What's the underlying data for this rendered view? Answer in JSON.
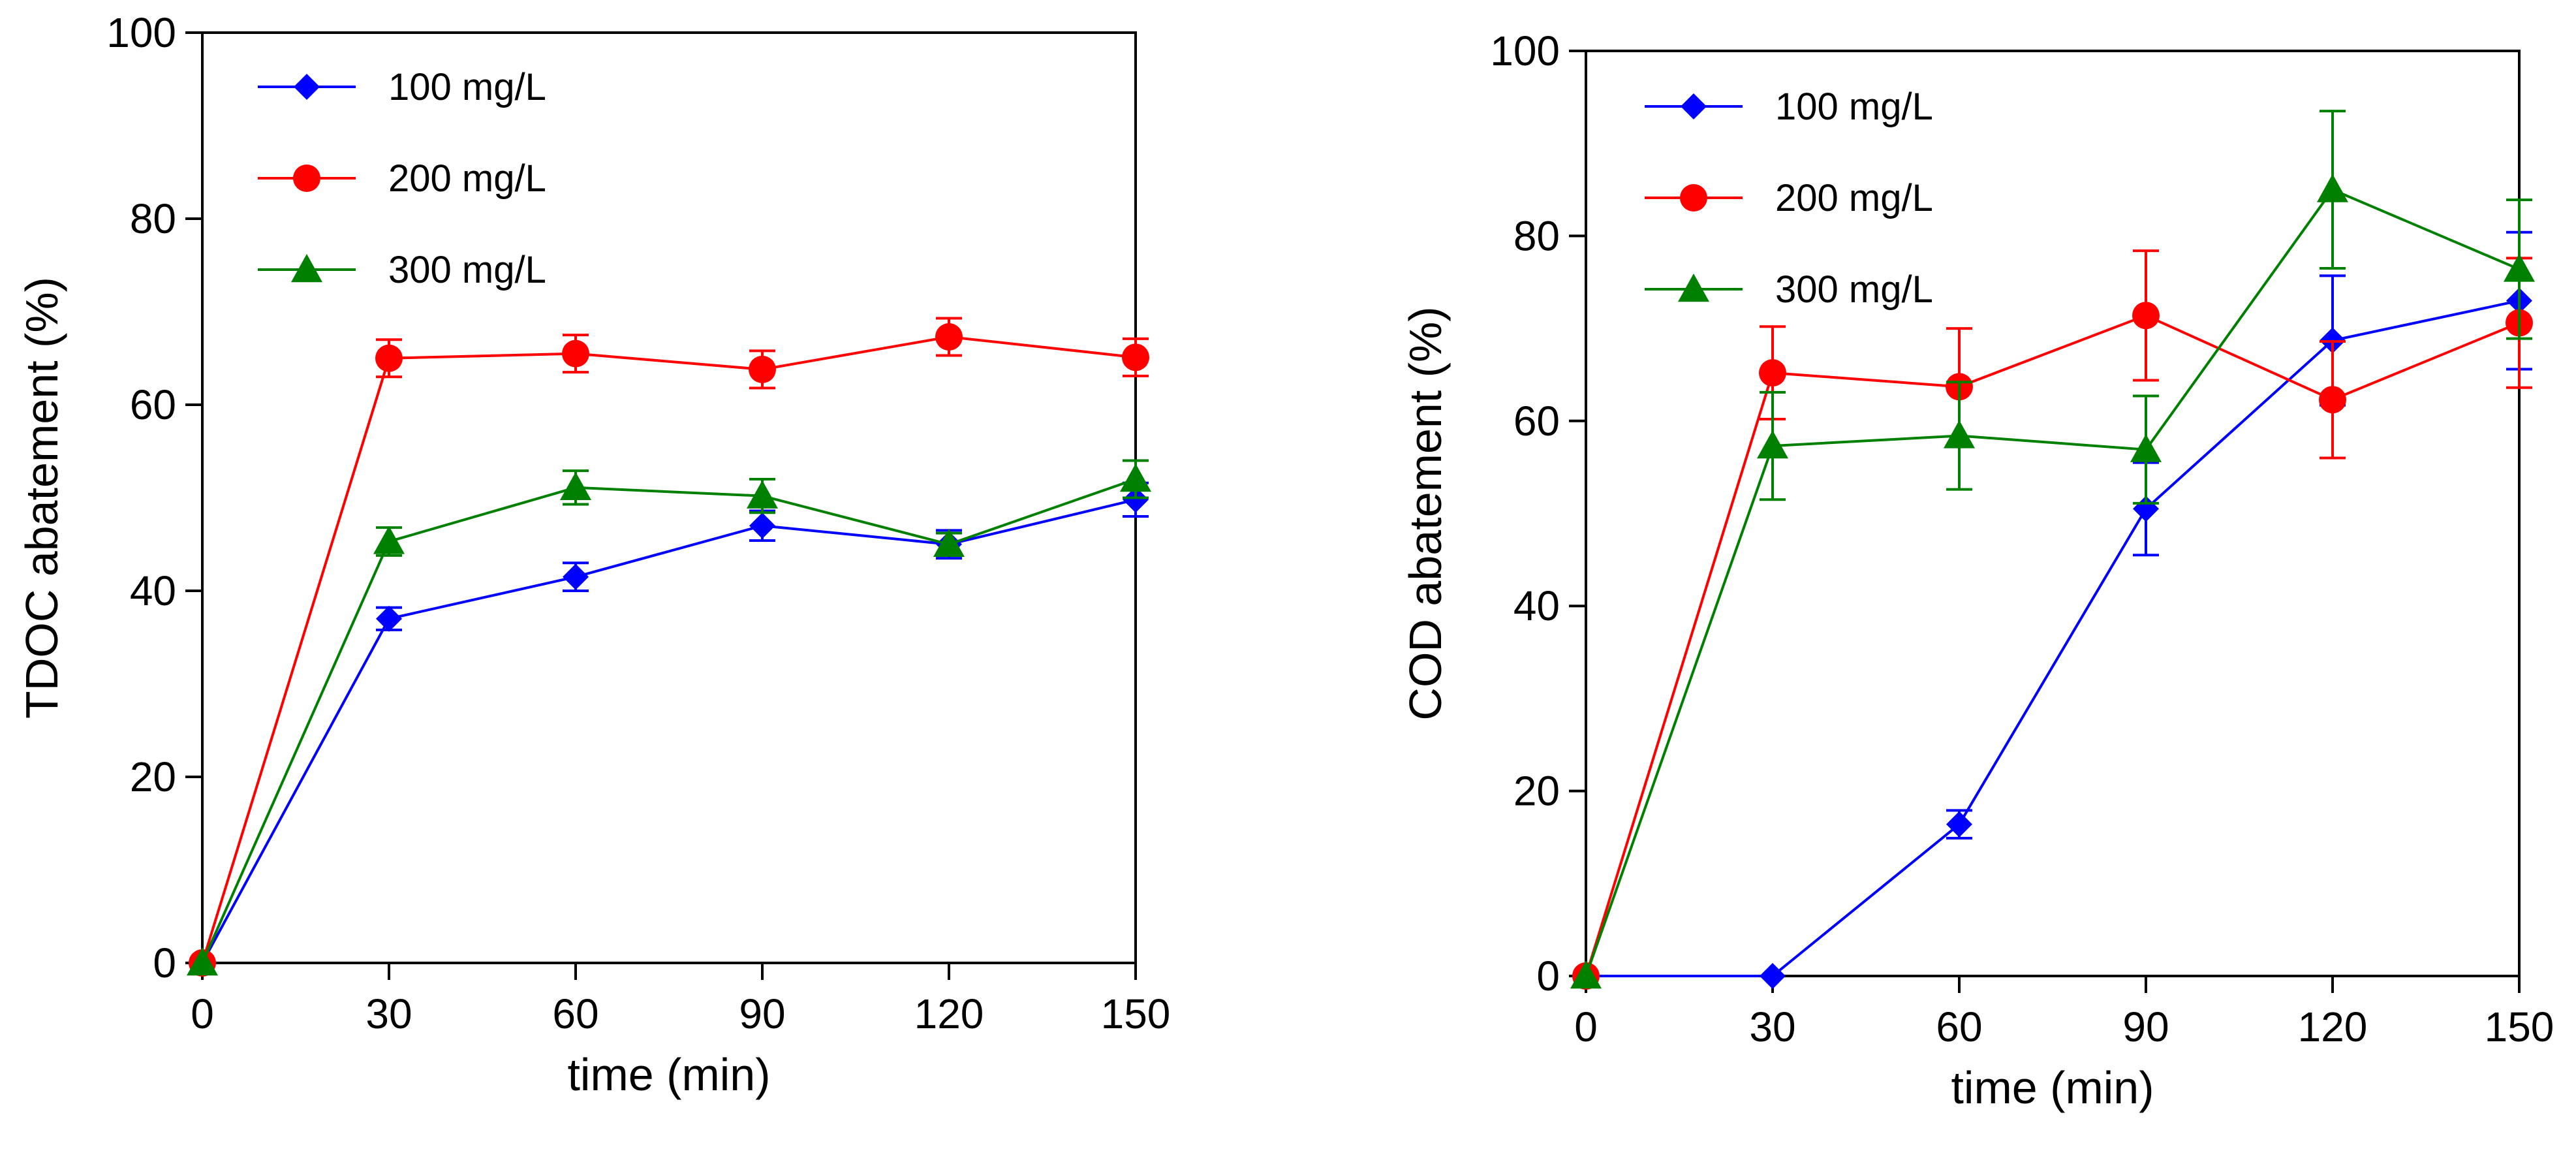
{
  "chart_data": [
    {
      "type": "line",
      "title": "",
      "xlabel": "time (min)",
      "ylabel": "TDOC abatement (%)",
      "xlim": [
        0,
        150
      ],
      "ylim": [
        0,
        100
      ],
      "xticks": [
        0,
        30,
        60,
        90,
        120,
        150
      ],
      "yticks": [
        0,
        20,
        40,
        60,
        80,
        100
      ],
      "grid": false,
      "legend_position": "top-left",
      "x": [
        0,
        30,
        60,
        90,
        120,
        150
      ],
      "series": [
        {
          "name": "100 mg/L",
          "color": "#0000ff",
          "marker": "diamond",
          "values": [
            0,
            37,
            41.5,
            47,
            45,
            49.8
          ],
          "errors": [
            0,
            1.2,
            1.5,
            1.6,
            1.5,
            1.8
          ]
        },
        {
          "name": "200 mg/L",
          "color": "#ff0000",
          "marker": "circle",
          "values": [
            0,
            65,
            65.5,
            63.8,
            67.3,
            65.1
          ],
          "errors": [
            0,
            2,
            2,
            2,
            2,
            2
          ]
        },
        {
          "name": "300 mg/L",
          "color": "#008000",
          "marker": "triangle",
          "values": [
            0,
            45.3,
            51.1,
            50.2,
            45,
            52
          ],
          "errors": [
            0,
            1.5,
            1.8,
            1.8,
            1.2,
            2
          ]
        }
      ]
    },
    {
      "type": "line",
      "title": "",
      "xlabel": "time (min)",
      "ylabel": "COD abatement  (%)",
      "xlim": [
        0,
        150
      ],
      "ylim": [
        0,
        100
      ],
      "xticks": [
        0,
        30,
        60,
        90,
        120,
        150
      ],
      "yticks": [
        0,
        20,
        40,
        60,
        80,
        100
      ],
      "grid": false,
      "legend_position": "top-left",
      "x": [
        0,
        30,
        60,
        90,
        120,
        150
      ],
      "series": [
        {
          "name": "100 mg/L",
          "color": "#0000ff",
          "marker": "diamond",
          "values": [
            0,
            0,
            16.4,
            50.5,
            68.7,
            73
          ],
          "errors": [
            0,
            0,
            1.5,
            5,
            7,
            7.4
          ]
        },
        {
          "name": "200 mg/L",
          "color": "#ff0000",
          "marker": "circle",
          "values": [
            0,
            65.2,
            63.7,
            71.4,
            62.3,
            70.6
          ],
          "errors": [
            0,
            5,
            6.3,
            7,
            6.3,
            7
          ]
        },
        {
          "name": "300 mg/L",
          "color": "#008000",
          "marker": "triangle",
          "values": [
            0,
            57.3,
            58.4,
            56.9,
            85,
            76.4
          ],
          "errors": [
            0,
            5.8,
            5.8,
            5.8,
            8.5,
            7.5
          ]
        }
      ]
    }
  ]
}
